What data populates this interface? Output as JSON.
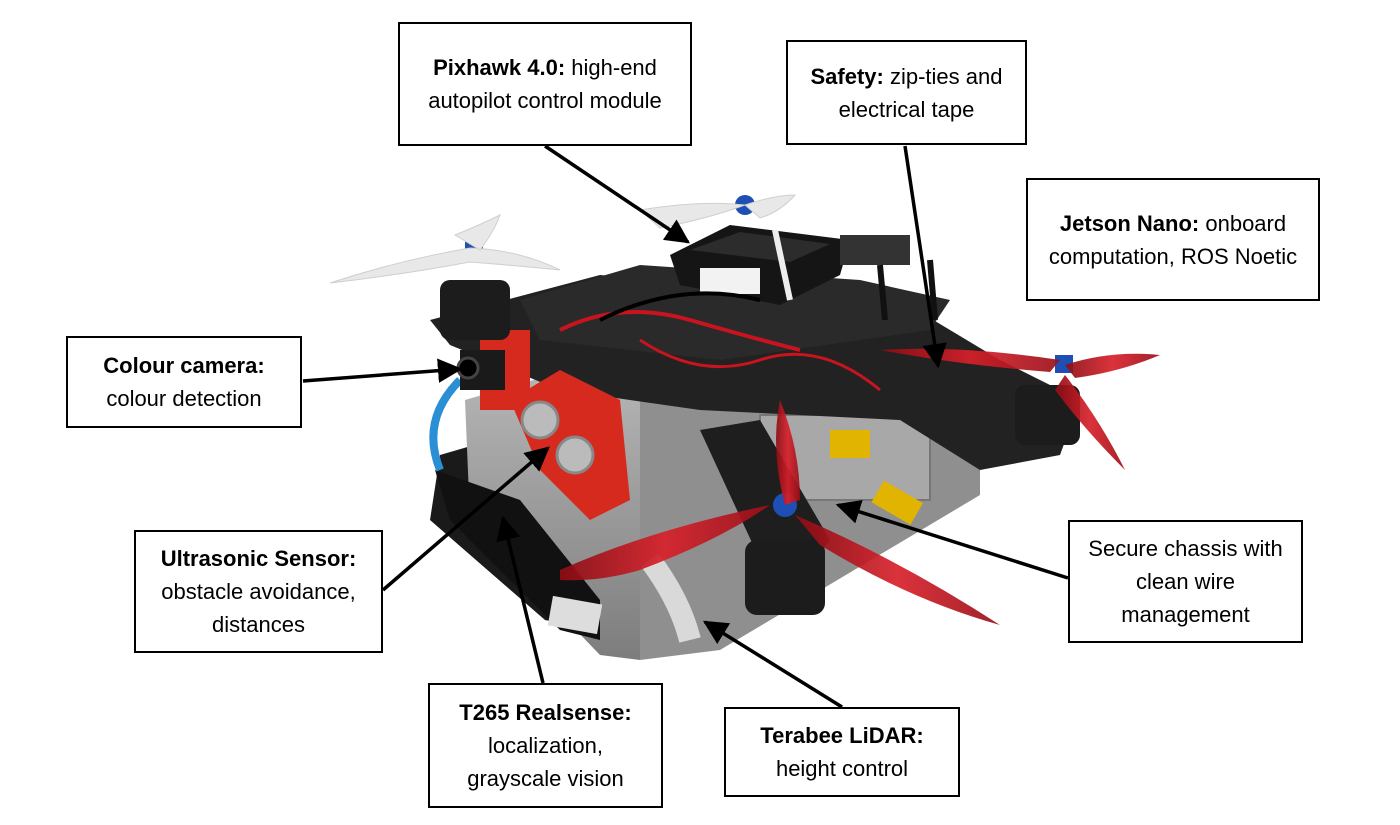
{
  "callouts": {
    "pixhawk": {
      "title": "Pixhawk 4.0:",
      "text": " high-end autopilot control module"
    },
    "safety": {
      "title": "Safety:",
      "text": " zip-ties and electrical tape"
    },
    "jetson": {
      "title": "Jetson Nano:",
      "text": " onboard computation, ROS Noetic"
    },
    "camera": {
      "title": "Colour camera:",
      "text": " colour detection"
    },
    "ultrasonic": {
      "title": "Ultrasonic Sensor:",
      "text": " obstacle avoidance, distances"
    },
    "chassis": {
      "title": "",
      "text": "Secure chassis with clean wire management"
    },
    "t265": {
      "title": "T265 Realsense:",
      "text": " localization, grayscale vision"
    },
    "lidar": {
      "title": "Terabee LiDAR:",
      "text": " height control"
    }
  },
  "colors": {
    "frame": "#1a1a1a",
    "chassis": "#9a9a9a",
    "propeller_white": "#e8e8e8",
    "propeller_red": "#c8141e",
    "accent_red": "#d62a1e",
    "motor_blue": "#1e4fb4",
    "cable_blue": "#2b8fd6",
    "connector_yellow": "#e0b400"
  }
}
